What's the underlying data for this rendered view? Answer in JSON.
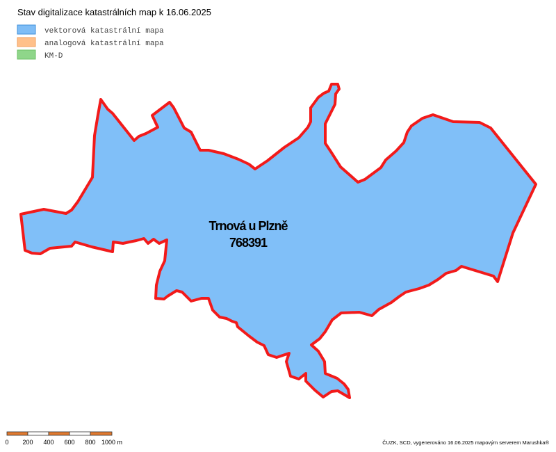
{
  "title": "Stav digitalizace katastrálních map k 16.06.2025",
  "legend": [
    "vektorová katastrální mapa",
    "analogová katastrální mapa",
    "KM-D"
  ],
  "area": {
    "name": "Trnová u Plzně",
    "code": "768391"
  },
  "scale_bar": [
    "0",
    "200",
    "400",
    "600",
    "800",
    "1000 m"
  ],
  "credit": "ČUZK, SCD, vygenerováno 16.06.2025 mapovým serverem Marushka®"
}
